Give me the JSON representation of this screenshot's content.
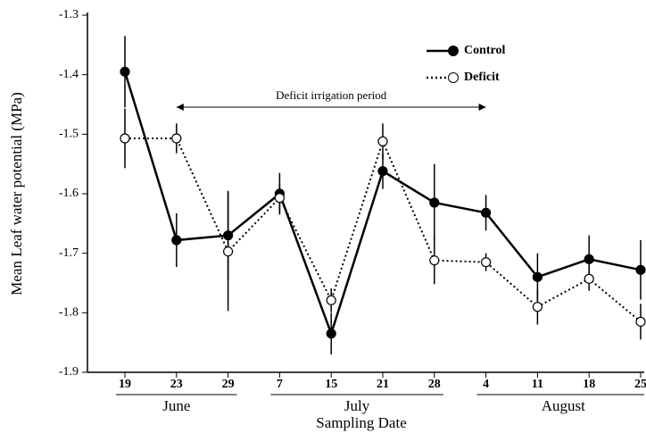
{
  "chart_data": {
    "type": "line",
    "y_label": "Mean Leaf water potential (MPa)",
    "x_label": "Sampling Date",
    "categories": [
      "19",
      "23",
      "29",
      "7",
      "15",
      "21",
      "28",
      "4",
      "11",
      "18",
      "25"
    ],
    "months": [
      "June",
      "June",
      "June",
      "July",
      "July",
      "July",
      "July",
      "August",
      "August",
      "August",
      "August"
    ],
    "ylim": [
      -1.9,
      -1.3
    ],
    "yticks": [
      -1.9,
      -1.8,
      -1.7,
      -1.6,
      -1.5,
      -1.4,
      -1.3
    ],
    "series": [
      {
        "name": "Control",
        "color": "#000000",
        "marker": "filled",
        "dash": false,
        "values": [
          -1.395,
          -1.678,
          -1.67,
          -1.6,
          -1.835,
          -1.562,
          -1.615,
          -1.632,
          -1.74,
          -1.71,
          -1.728
        ],
        "errors": [
          0.06,
          0.045,
          0.075,
          0.035,
          0.035,
          0.03,
          0.065,
          0.03,
          0.04,
          0.04,
          0.05
        ]
      },
      {
        "name": "Deficit",
        "color": "#000000",
        "marker": "open",
        "dash": true,
        "values": [
          -1.507,
          -1.507,
          -1.697,
          -1.607,
          -1.779,
          -1.512,
          -1.712,
          -1.715,
          -1.79,
          -1.743,
          -1.815
        ],
        "errors": [
          0.05,
          0.025,
          0.1,
          0.025,
          0.02,
          0.03,
          0.04,
          0.015,
          0.03,
          0.02,
          0.03
        ]
      }
    ],
    "annotation": {
      "text": "Deficit irrigation period",
      "span": [
        "23",
        "4"
      ]
    }
  }
}
